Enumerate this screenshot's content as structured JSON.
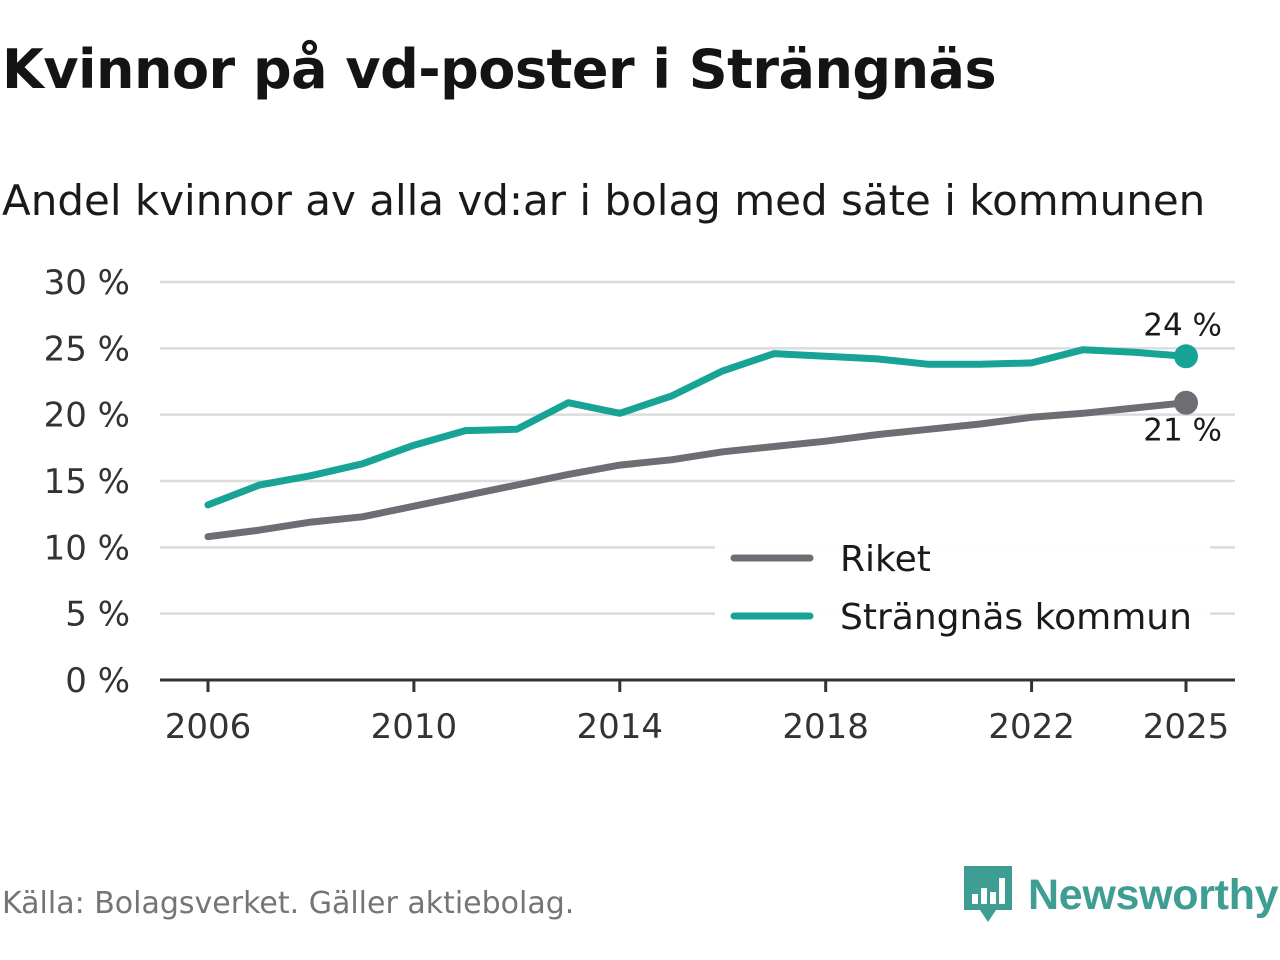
{
  "title": "Kvinnor på vd-poster i Strängnäs",
  "subtitle": "Andel kvinnor av alla vd:ar i bolag med säte i kommunen",
  "source": "Källa: Bolagsverket. Gäller aktiebolag.",
  "brand": "Newsworthy",
  "colors": {
    "riket": "#706c74",
    "strangnas": "#17a396",
    "grid": "#dcdcdc",
    "axis": "#333333",
    "brand": "#3f9e93"
  },
  "chart_data": {
    "type": "line",
    "title": "Kvinnor på vd-poster i Strängnäs",
    "subtitle": "Andel kvinnor av alla vd:ar i bolag med säte i kommunen",
    "xlabel": "",
    "ylabel": "",
    "x": [
      2006,
      2007,
      2008,
      2009,
      2010,
      2011,
      2012,
      2013,
      2014,
      2015,
      2016,
      2017,
      2018,
      2019,
      2020,
      2021,
      2022,
      2023,
      2024,
      2025
    ],
    "xlim": [
      2006,
      2025
    ],
    "ylim": [
      0,
      30
    ],
    "x_ticks": [
      "2006",
      "2010",
      "2014",
      "2018",
      "2022",
      "2025"
    ],
    "x_tick_values": [
      2006,
      2010,
      2014,
      2018,
      2022,
      2025
    ],
    "y_ticks": [
      "0 %",
      "5 %",
      "10 %",
      "15 %",
      "20 %",
      "25 %",
      "30 %"
    ],
    "y_tick_values": [
      0,
      5,
      10,
      15,
      20,
      25,
      30
    ],
    "grid": true,
    "legend_position": "bottom-right",
    "series": [
      {
        "name": "Riket",
        "color": "#706c74",
        "values": [
          10.8,
          11.3,
          11.9,
          12.3,
          13.1,
          13.9,
          14.7,
          15.5,
          16.2,
          16.6,
          17.2,
          17.6,
          18.0,
          18.5,
          18.9,
          19.3,
          19.8,
          20.1,
          20.5,
          20.9
        ],
        "end_label": "21 %"
      },
      {
        "name": "Strängnäs kommun",
        "color": "#17a396",
        "values": [
          13.2,
          14.7,
          15.4,
          16.3,
          17.7,
          18.8,
          18.9,
          20.9,
          20.1,
          21.4,
          23.3,
          24.6,
          24.4,
          24.2,
          23.8,
          23.8,
          23.9,
          24.9,
          24.7,
          24.4
        ],
        "end_label": "24 %"
      }
    ]
  }
}
